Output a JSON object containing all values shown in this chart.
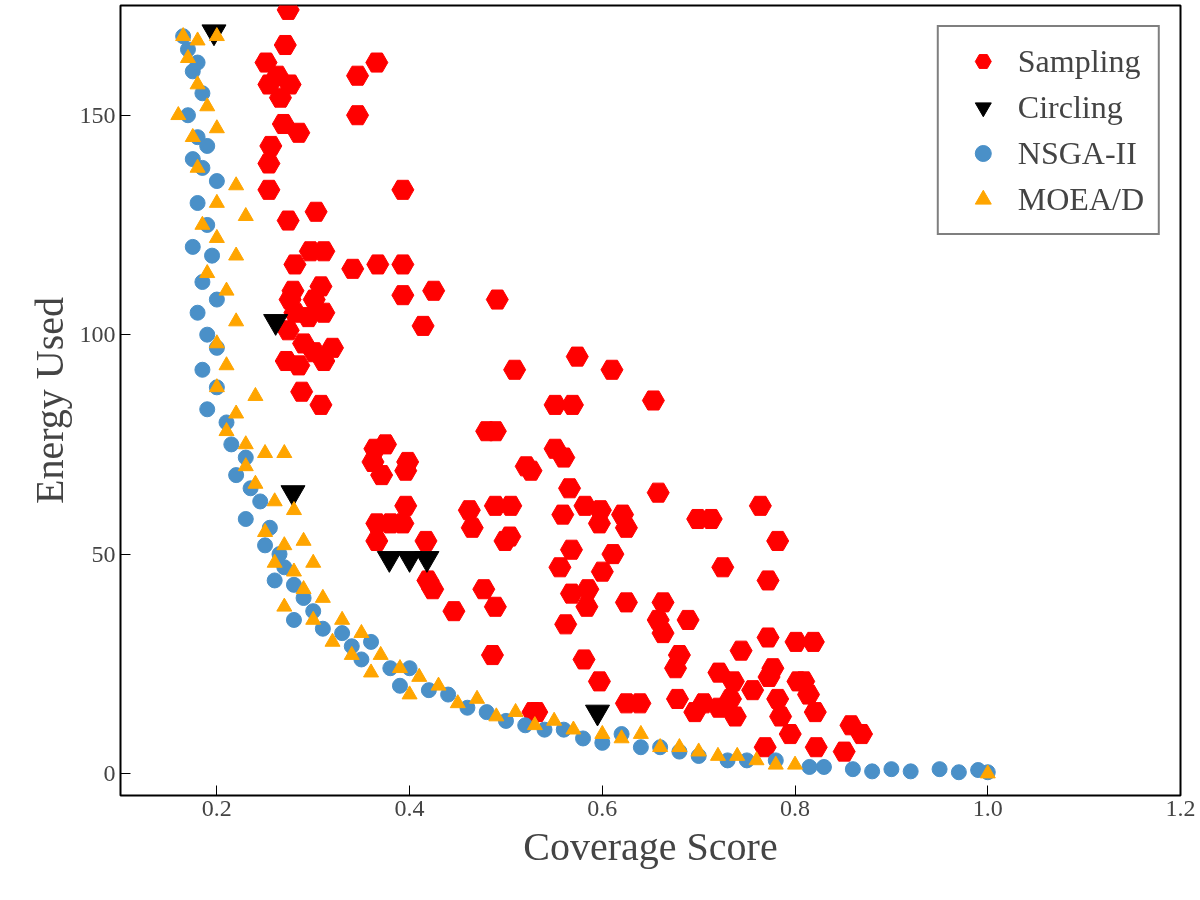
{
  "chart_data": {
    "type": "scatter",
    "xlabel": "Coverage Score",
    "ylabel": "Energy Used",
    "xlim": [
      0.1,
      1.2
    ],
    "ylim": [
      -5,
      175
    ],
    "xticks": [
      0.2,
      0.4,
      0.6,
      0.8,
      {
        "value": 1,
        "label": "1.0"
      },
      1.2
    ],
    "yticks": [
      0,
      50,
      100,
      150
    ],
    "grid": false,
    "legend": "top right",
    "series": [
      {
        "name": "Sampling",
        "color": "#ff0000",
        "x": [
          0.274,
          0.271,
          0.251,
          0.366,
          0.346,
          0.263,
          0.254,
          0.276,
          0.266,
          0.346,
          0.269,
          0.285,
          0.256,
          0.254,
          0.254,
          0.393,
          0.303,
          0.274,
          0.297,
          0.311,
          0.281,
          0.341,
          0.367,
          0.393,
          0.393,
          0.425,
          0.491,
          0.414,
          0.509,
          0.279,
          0.308,
          0.301,
          0.276,
          0.311,
          0.281,
          0.295,
          0.274,
          0.29,
          0.32,
          0.301,
          0.272,
          0.285,
          0.311,
          0.288,
          0.308,
          0.364,
          0.375,
          0.362,
          0.398,
          0.371,
          0.396,
          0.396,
          0.366,
          0.38,
          0.393,
          0.366,
          0.417,
          0.419,
          0.424,
          0.446,
          0.462,
          0.465,
          0.489,
          0.505,
          0.504,
          0.499,
          0.477,
          0.489,
          0.486,
          0.528,
          0.48,
          0.489,
          0.521,
          0.574,
          0.61,
          0.551,
          0.569,
          0.653,
          0.551,
          0.56,
          0.526,
          0.566,
          0.658,
          0.559,
          0.582,
          0.598,
          0.621,
          0.597,
          0.625,
          0.699,
          0.713,
          0.764,
          0.782,
          0.568,
          0.611,
          0.556,
          0.6,
          0.725,
          0.585,
          0.568,
          0.772,
          0.584,
          0.625,
          0.562,
          0.663,
          0.658,
          0.689,
          0.663,
          0.772,
          0.801,
          0.819,
          0.581,
          0.744,
          0.68,
          0.676,
          0.597,
          0.777,
          0.721,
          0.736,
          0.773,
          0.803,
          0.809,
          0.756,
          0.814,
          0.678,
          0.705,
          0.733,
          0.782,
          0.696,
          0.721,
          0.738,
          0.785,
          0.821,
          0.625,
          0.639,
          0.532,
          0.858,
          0.869,
          0.795,
          0.769,
          0.822,
          0.851
        ],
        "values": [
          174,
          166,
          162,
          162,
          159,
          159,
          157,
          157,
          154,
          150,
          148,
          146,
          143,
          139,
          133,
          133,
          128,
          126,
          119,
          119,
          116,
          115,
          116,
          116,
          109,
          110,
          108,
          102,
          92,
          110,
          111,
          108,
          108,
          105,
          105,
          104,
          101,
          98,
          97,
          96,
          94,
          93,
          94,
          87,
          84,
          74,
          75,
          71,
          71,
          68,
          69,
          61,
          57,
          57,
          57,
          53,
          53,
          44,
          42,
          37,
          60,
          56,
          61,
          61,
          54,
          53,
          42,
          38,
          27,
          14,
          78,
          78,
          70,
          95,
          92,
          84,
          84,
          85,
          74,
          72,
          69,
          65,
          64,
          59,
          61,
          60,
          59,
          57,
          56,
          58,
          58,
          61,
          53,
          51,
          50,
          47,
          46,
          47,
          42,
          41,
          44,
          38,
          39,
          34,
          39,
          35,
          35,
          32,
          31,
          30,
          30,
          26,
          28,
          27,
          24,
          21,
          24,
          23,
          21,
          22,
          21,
          21,
          19,
          18,
          17,
          16,
          17,
          17,
          14,
          15,
          13,
          13,
          14,
          16,
          16,
          14,
          11,
          9,
          9,
          6,
          6,
          5
        ]
      },
      {
        "name": "Circling",
        "color": "#000000",
        "x": [
          0.197,
          0.261,
          0.279,
          0.379,
          0.4,
          0.418,
          0.595
        ],
        "values": [
          169,
          103,
          64,
          49,
          49,
          49,
          14
        ]
      },
      {
        "name": "NSGA-II",
        "color": "#4a90c8",
        "marker": "circle",
        "x": [
          0.165,
          0.17,
          0.175,
          0.18,
          0.185,
          0.17,
          0.18,
          0.19,
          0.175,
          0.185,
          0.2,
          0.18,
          0.19,
          0.175,
          0.195,
          0.185,
          0.2,
          0.18,
          0.19,
          0.2,
          0.185,
          0.2,
          0.19,
          0.21,
          0.215,
          0.23,
          0.22,
          0.235,
          0.245,
          0.23,
          0.255,
          0.25,
          0.265,
          0.27,
          0.26,
          0.28,
          0.29,
          0.3,
          0.28,
          0.31,
          0.33,
          0.34,
          0.36,
          0.35,
          0.38,
          0.4,
          0.39,
          0.42,
          0.44,
          0.46,
          0.48,
          0.5,
          0.52,
          0.54,
          0.56,
          0.58,
          0.6,
          0.62,
          0.64,
          0.66,
          0.68,
          0.7,
          0.73,
          0.75,
          0.78,
          0.815,
          0.83,
          0.86,
          0.88,
          0.9,
          0.92,
          0.95,
          0.97,
          0.99,
          1.0
        ],
        "values": [
          168,
          165,
          160,
          162,
          155,
          150,
          145,
          143,
          140,
          138,
          135,
          130,
          125,
          120,
          118,
          112,
          108,
          105,
          100,
          97,
          92,
          88,
          83,
          80,
          75,
          72,
          68,
          65,
          62,
          58,
          56,
          52,
          50,
          47,
          44,
          43,
          40,
          37,
          35,
          33,
          32,
          29,
          30,
          26,
          24,
          24,
          20,
          19,
          18,
          15,
          14,
          12,
          11,
          10,
          10,
          8,
          7,
          9,
          6,
          6,
          5,
          4,
          3,
          3,
          3,
          1.5,
          1.5,
          1,
          0.5,
          1,
          0.5,
          1,
          0.3,
          0.8,
          0.3
        ]
      },
      {
        "name": "MOEA/D",
        "color": "#ffa500",
        "marker": "triangle",
        "x": [
          0.165,
          0.18,
          0.2,
          0.17,
          0.18,
          0.16,
          0.19,
          0.2,
          0.175,
          0.18,
          0.22,
          0.2,
          0.23,
          0.185,
          0.2,
          0.22,
          0.19,
          0.21,
          0.22,
          0.2,
          0.21,
          0.2,
          0.24,
          0.22,
          0.21,
          0.23,
          0.25,
          0.23,
          0.27,
          0.24,
          0.26,
          0.28,
          0.25,
          0.27,
          0.29,
          0.26,
          0.28,
          0.3,
          0.29,
          0.31,
          0.27,
          0.3,
          0.33,
          0.32,
          0.35,
          0.34,
          0.37,
          0.36,
          0.39,
          0.41,
          0.4,
          0.43,
          0.45,
          0.47,
          0.49,
          0.51,
          0.53,
          0.55,
          0.57,
          0.6,
          0.62,
          0.64,
          0.66,
          0.68,
          0.7,
          0.72,
          0.74,
          0.76,
          0.78,
          0.8,
          1.0
        ],
        "values": [
          168,
          167,
          168,
          163,
          157,
          150,
          152,
          147,
          145,
          138,
          134,
          130,
          127,
          125,
          122,
          118,
          114,
          110,
          103,
          98,
          93,
          88,
          86,
          82,
          78,
          75,
          73,
          70,
          73,
          66,
          62,
          60,
          55,
          52,
          53,
          48,
          46,
          48,
          42,
          40,
          38,
          35,
          35,
          30,
          32,
          27,
          27,
          23,
          24,
          22,
          18,
          20,
          16,
          17,
          13,
          14,
          11,
          12,
          10,
          9,
          8,
          9,
          6,
          6,
          5,
          4,
          4,
          3,
          2,
          2,
          0
        ]
      }
    ]
  }
}
